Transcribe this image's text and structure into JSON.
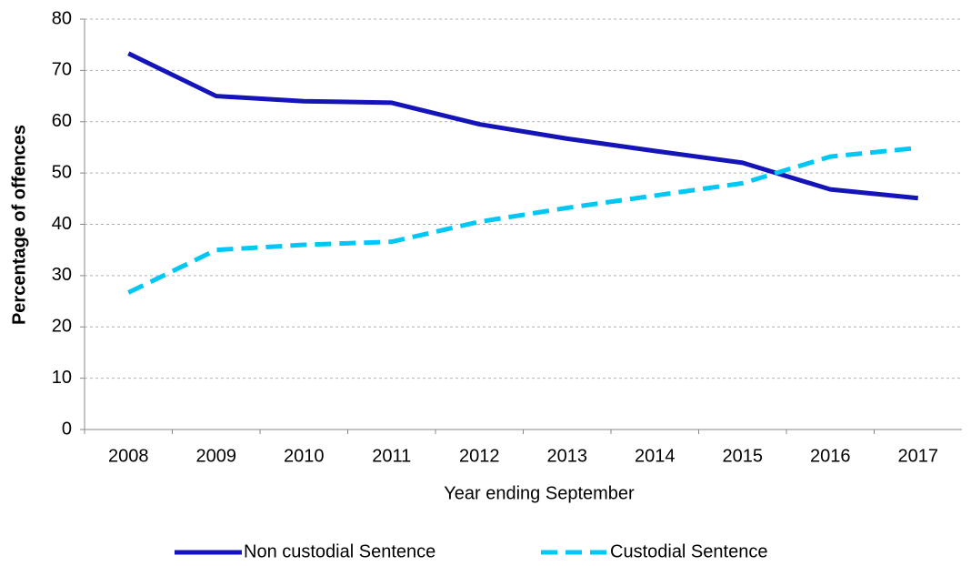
{
  "chart_data": {
    "type": "line",
    "x_label": "Year ending September",
    "y_label": "Percentage of offences",
    "categories": [
      "2008",
      "2009",
      "2010",
      "2011",
      "2012",
      "2013",
      "2014",
      "2015",
      "2016",
      "2017"
    ],
    "series": [
      {
        "name": "Non custodial Sentence",
        "color": "#1414b8",
        "line_style": "solid",
        "values": [
          73.3,
          65,
          64,
          63.7,
          59.5,
          56.7,
          54.3,
          52,
          46.8,
          45.1
        ]
      },
      {
        "name": "Custodial Sentence",
        "color": "#00c8f5",
        "line_style": "dashed",
        "values": [
          26.7,
          35,
          36,
          36.6,
          40.5,
          43.2,
          45.6,
          48,
          53.2,
          54.9
        ]
      }
    ],
    "ylim": [
      0,
      80
    ],
    "yticks": [
      0,
      10,
      20,
      30,
      40,
      50,
      60,
      70,
      80
    ],
    "grid": true,
    "legend": "bottom"
  }
}
